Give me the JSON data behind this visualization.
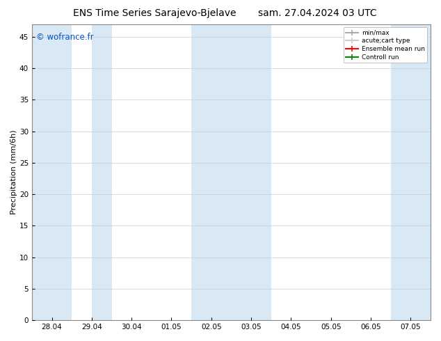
{
  "title_left": "ENS Time Series Sarajevo-Bjelave",
  "title_right": "sam. 27.04.2024 03 UTC",
  "ylabel": "Precipitation (mm/6h)",
  "watermark": "© wofrance.fr",
  "watermark_color": "#0055cc",
  "ylim": [
    0,
    47
  ],
  "yticks": [
    0,
    5,
    10,
    15,
    20,
    25,
    30,
    35,
    40,
    45
  ],
  "xlabel_ticks": [
    "28.04",
    "29.04",
    "30.04",
    "01.05",
    "02.05",
    "03.05",
    "04.05",
    "05.05",
    "06.05",
    "07.05"
  ],
  "x_positions": [
    0,
    1,
    2,
    3,
    4,
    5,
    6,
    7,
    8,
    9
  ],
  "x_start": -0.5,
  "x_end": 9.5,
  "shaded_regions": [
    {
      "xmin": -0.5,
      "xmax": 0.5,
      "color": "#d8e8f4"
    },
    {
      "xmin": 0.5,
      "xmax": 1.0,
      "color": "#ffffff"
    },
    {
      "xmin": 1.0,
      "xmax": 1.5,
      "color": "#d8e8f4"
    },
    {
      "xmin": 3.5,
      "xmax": 4.5,
      "color": "#d8e8f4"
    },
    {
      "xmin": 4.5,
      "xmax": 5.5,
      "color": "#d8e8f4"
    },
    {
      "xmin": 8.5,
      "xmax": 9.5,
      "color": "#d8e8f4"
    }
  ],
  "legend_entries": [
    {
      "label": "min/max",
      "color": "#aaaaaa",
      "lw": 1.5
    },
    {
      "label": "acute;cart type",
      "color": "#cccccc",
      "lw": 1.5
    },
    {
      "label": "Ensemble mean run",
      "color": "#ff0000",
      "lw": 1.5
    },
    {
      "label": "Controll run",
      "color": "#008800",
      "lw": 1.5
    }
  ],
  "bg_color": "#ffffff",
  "plot_bg_color": "#ffffff",
  "grid_color": "#cccccc",
  "title_fontsize": 10,
  "axis_fontsize": 8,
  "tick_fontsize": 7.5
}
